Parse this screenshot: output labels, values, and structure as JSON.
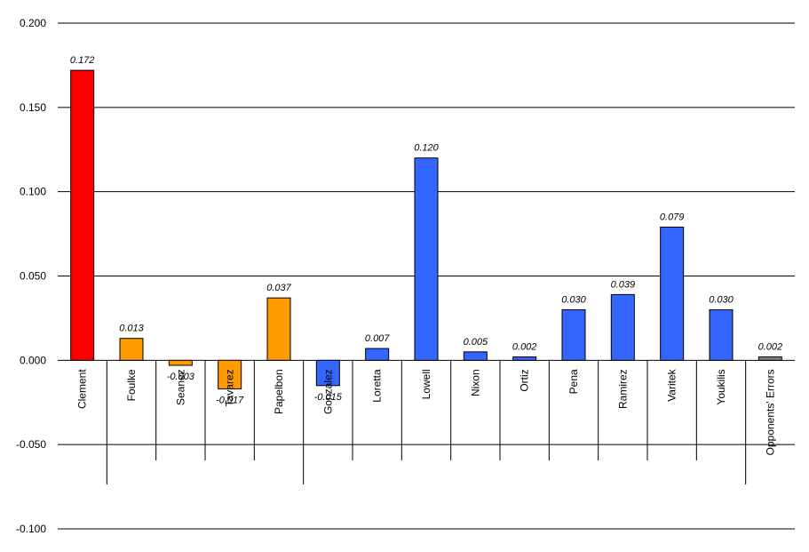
{
  "chart_data": {
    "type": "bar",
    "categories": [
      "Clement",
      "Foulke",
      "Seanez",
      "Tavarez",
      "Papelbon",
      "Gonzalez",
      "Loretta",
      "Lowell",
      "Nixon",
      "Ortiz",
      "Pena",
      "Ramirez",
      "Varitek",
      "Youkilis",
      "Opponents' Errors"
    ],
    "values": [
      0.172,
      0.013,
      -0.003,
      -0.017,
      0.037,
      -0.015,
      0.007,
      0.12,
      0.005,
      0.002,
      0.03,
      0.039,
      0.079,
      0.03,
      0.002
    ],
    "data_labels": [
      "0.172",
      "0.013",
      "-0.003",
      "-0.017",
      "0.037",
      "-0.015",
      "0.007",
      "0.120",
      "0.005",
      "0.002",
      "0.030",
      "0.039",
      "0.079",
      "0.030",
      "0.002"
    ],
    "bar_colors": [
      "#ff0000",
      "#ff9900",
      "#ff9900",
      "#ff9900",
      "#ff9900",
      "#3366ff",
      "#3366ff",
      "#3366ff",
      "#3366ff",
      "#3366ff",
      "#3366ff",
      "#3366ff",
      "#3366ff",
      "#3366ff",
      "#808080"
    ],
    "groups": [
      {
        "name": "",
        "start": 0,
        "end": 0
      },
      {
        "name": "",
        "start": 1,
        "end": 4
      },
      {
        "name": "",
        "start": 5,
        "end": 13
      },
      {
        "name": "",
        "start": 14,
        "end": 14
      }
    ],
    "y_ticks": [
      "0.200",
      "0.150",
      "0.100",
      "0.050",
      "0.000",
      "-0.050",
      "-0.100"
    ],
    "ylim": [
      -0.1,
      0.2
    ],
    "grid": true,
    "title": "",
    "xlabel": "",
    "ylabel": ""
  }
}
